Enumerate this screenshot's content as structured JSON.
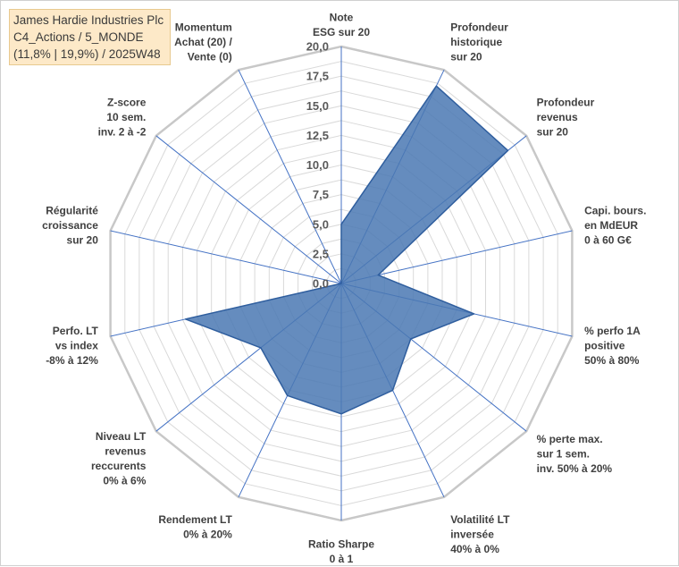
{
  "title_box": {
    "line1": "James Hardie Industries Plc",
    "line2": "C4_Actions / 5_MONDE",
    "line3": "(11,8% | 19,9%) / 2025W48"
  },
  "colors": {
    "fill": "#4a78b3",
    "stroke": "#2f5e9e",
    "grid": "#d9d9d9",
    "spoke": "#4472c4",
    "title_bg": "#fde9c8"
  },
  "chart_data": {
    "type": "radar",
    "rmin": 0,
    "rmax": 20,
    "tick_step": 2.5,
    "tick_labels": [
      "0,0",
      "2,5",
      "5,0",
      "7,5",
      "10,0",
      "12,5",
      "15,0",
      "17,5",
      "20,0"
    ],
    "legend": "none",
    "grid": true,
    "axes": [
      [
        "Note",
        "ESG sur 20"
      ],
      [
        "Profondeur",
        "historique",
        "sur 20"
      ],
      [
        "Profondeur",
        "revenus",
        "sur 20"
      ],
      [
        "Capi. bours.",
        "en MdEUR",
        "0 à 60 G€"
      ],
      [
        "% perfo 1A",
        "positive",
        "50% à 80%"
      ],
      [
        "% perte max.",
        "sur 1 sem.",
        "inv. 50% à 20%"
      ],
      [
        "Volatilité LT",
        "inversée",
        "40% à 0%"
      ],
      [
        "Ratio Sharpe",
        "0 à 1"
      ],
      [
        "Rendement LT",
        "0% à 20%"
      ],
      [
        "Niveau LT",
        "revenus",
        "reccurents",
        "0% à 6%"
      ],
      [
        "Perfo. LT",
        "vs index",
        "-8% à 12%"
      ],
      [
        "Régularité",
        "croissance",
        "sur 20"
      ],
      [
        "Z-score",
        "10 sem.",
        "inv. 2 à -2"
      ],
      [
        "Momentum",
        "Achat (20) /",
        "Vente (0)"
      ]
    ],
    "values": [
      5.0,
      18.5,
      18.0,
      3.2,
      11.5,
      7.5,
      10.0,
      11.0,
      10.5,
      8.7,
      13.5,
      0.0,
      0.0,
      0.0
    ]
  }
}
